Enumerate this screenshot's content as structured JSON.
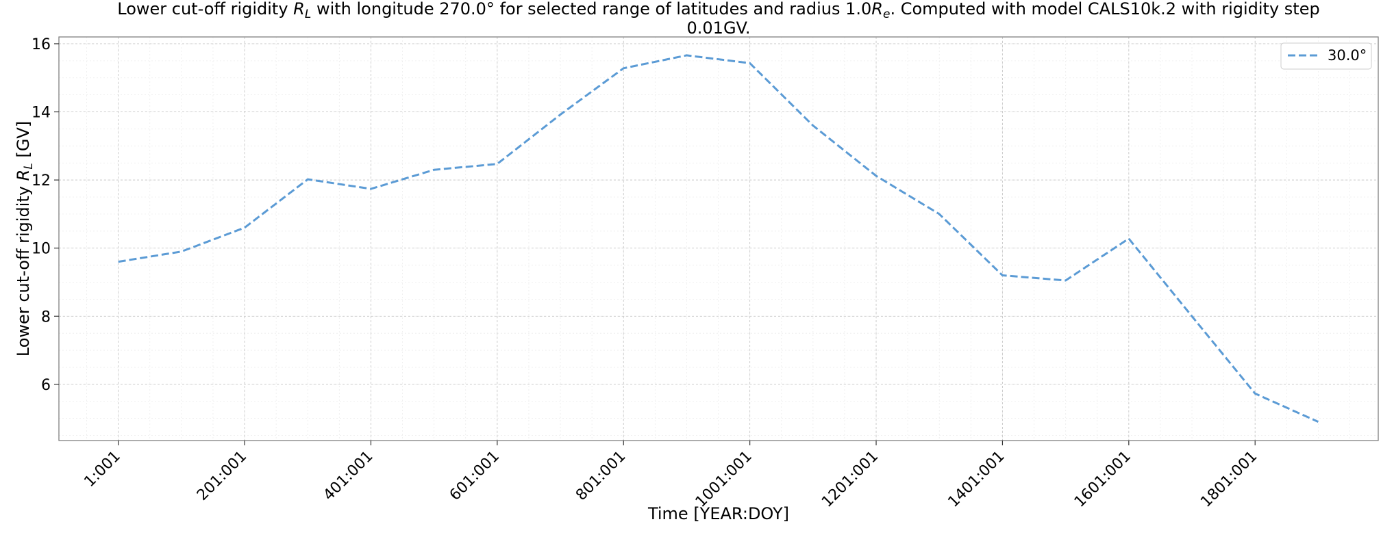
{
  "chart_data": {
    "type": "line",
    "title": "Lower cut-off rigidity R_L with longitude 270.0° for selected range of latitudes and radius 1.0R_e. Computed with model CALS10k.2 with rigidity step 0.01GV.",
    "title_parts": {
      "line1_a": "Lower cut-off rigidity ",
      "line1_b": " with longitude 270.0° for selected range of latitudes and radius 1.0",
      "line1_c": ". Computed with model CALS10k.2 with rigidity step",
      "line2": "0.01GV.",
      "sym_R": "R",
      "sub_L": "L",
      "sub_e": "e"
    },
    "xlabel": "Time [YEAR:DOY]",
    "ylabel_parts": {
      "text": "Lower cut-off rigidity ",
      "sym": "R",
      "sub": "L",
      "unit": " [GV]"
    },
    "x_tick_labels": [
      "1:001",
      "201:001",
      "401:001",
      "601:001",
      "801:001",
      "1001:001",
      "1201:001",
      "1401:001",
      "1601:001",
      "1801:001"
    ],
    "x_tick_values": [
      1,
      201,
      401,
      601,
      801,
      1001,
      1201,
      1401,
      1601,
      1801
    ],
    "y_ticks": [
      6,
      8,
      10,
      12,
      14,
      16
    ],
    "xlim": [
      -93,
      1996
    ],
    "ylim": [
      4.35,
      16.2
    ],
    "grid": true,
    "legend_position": "top-right",
    "series": [
      {
        "name": "30.0°",
        "color": "#5b9bd5",
        "line_style": "dashed",
        "x": [
          1,
          101,
          201,
          301,
          401,
          501,
          601,
          701,
          801,
          901,
          1001,
          1101,
          1201,
          1301,
          1401,
          1501,
          1601,
          1701,
          1801,
          1901
        ],
        "values": [
          9.6,
          9.9,
          10.6,
          12.02,
          11.74,
          12.3,
          12.47,
          13.92,
          15.28,
          15.66,
          15.43,
          13.6,
          12.12,
          11.0,
          9.2,
          9.05,
          10.28,
          8.0,
          5.73,
          4.9
        ]
      }
    ]
  }
}
